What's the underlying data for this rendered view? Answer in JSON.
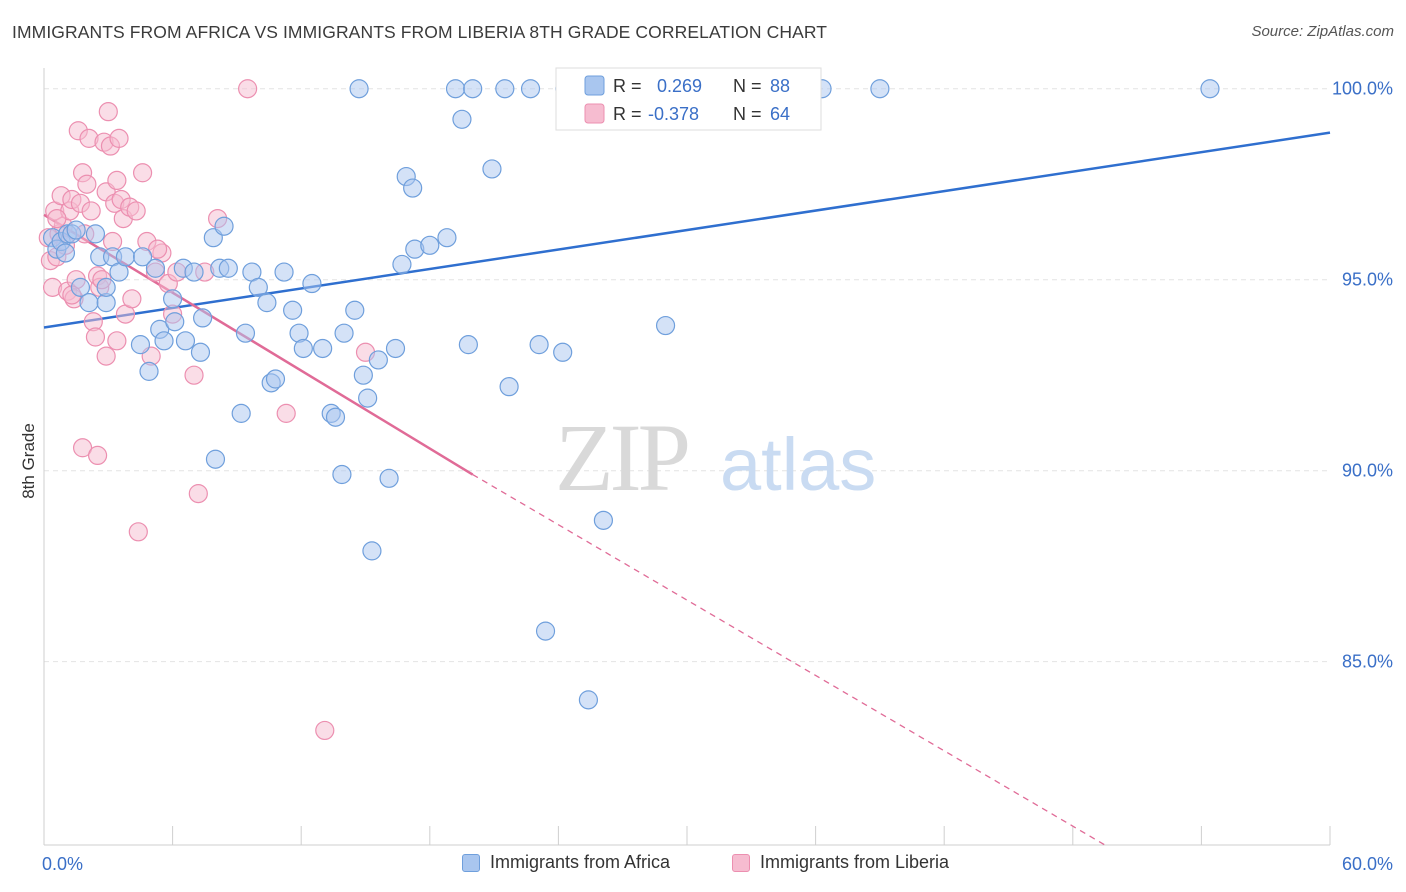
{
  "title": "IMMIGRANTS FROM AFRICA VS IMMIGRANTS FROM LIBERIA 8TH GRADE CORRELATION CHART",
  "source": "Source: ZipAtlas.com",
  "watermark": {
    "zip": "ZIP",
    "atlas": "atlas"
  },
  "colors": {
    "blue_fill": "#a9c6ef",
    "blue_stroke": "#6f9fdc",
    "blue_line": "#2f6fcf",
    "pink_fill": "#f6bcd0",
    "pink_stroke": "#ec8fb0",
    "pink_line": "#e06b97",
    "axis_label": "#3a6fc7",
    "grid": "#e4e4e4"
  },
  "legend_top": {
    "row1": {
      "r_label": "R =",
      "r_value": "0.269",
      "n_label": "N =",
      "n_value": "88"
    },
    "row2": {
      "r_label": "R =",
      "r_value": "-0.378",
      "n_label": "N =",
      "n_value": "64"
    }
  },
  "legend_bottom": {
    "series1": "Immigrants from Africa",
    "series2": "Immigrants from Liberia"
  },
  "chart_data": {
    "type": "scatter",
    "title": "IMMIGRANTS FROM AFRICA VS IMMIGRANTS FROM LIBERIA 8TH GRADE CORRELATION CHART",
    "xlabel": "",
    "ylabel": "8th Grade",
    "xlim": [
      0,
      60
    ],
    "ylim": [
      80.2,
      100.7
    ],
    "x_tick_labels": [
      "0.0%",
      "60.0%"
    ],
    "y_tick_labels": [
      "100.0%",
      "95.0%",
      "90.0%",
      "85.0%"
    ],
    "y_ticks": [
      100,
      95,
      90,
      85
    ],
    "grid": true,
    "series": [
      {
        "name": "Immigrants from Africa",
        "color": "#a9c6ef",
        "r": 0.269,
        "n": 88,
        "trend": {
          "x": [
            0,
            60
          ],
          "y": [
            93.75,
            98.85
          ]
        },
        "points": [
          [
            0.4,
            96.1
          ],
          [
            0.6,
            95.8
          ],
          [
            0.8,
            96.0
          ],
          [
            1.0,
            95.7
          ],
          [
            1.1,
            96.2
          ],
          [
            1.3,
            96.2
          ],
          [
            1.5,
            96.3
          ],
          [
            1.7,
            94.8
          ],
          [
            2.1,
            94.4
          ],
          [
            2.4,
            96.2
          ],
          [
            2.6,
            95.6
          ],
          [
            2.9,
            94.4
          ],
          [
            2.9,
            94.8
          ],
          [
            3.2,
            95.6
          ],
          [
            3.5,
            95.2
          ],
          [
            3.8,
            95.6
          ],
          [
            4.5,
            93.3
          ],
          [
            4.6,
            95.6
          ],
          [
            4.9,
            92.6
          ],
          [
            5.2,
            95.3
          ],
          [
            5.4,
            93.7
          ],
          [
            5.6,
            93.4
          ],
          [
            6.0,
            94.5
          ],
          [
            6.1,
            93.9
          ],
          [
            6.5,
            95.3
          ],
          [
            6.6,
            93.4
          ],
          [
            7.0,
            95.2
          ],
          [
            7.3,
            93.1
          ],
          [
            7.4,
            94.0
          ],
          [
            7.9,
            96.1
          ],
          [
            8.0,
            90.3
          ],
          [
            8.2,
            95.3
          ],
          [
            8.4,
            96.4
          ],
          [
            8.6,
            95.3
          ],
          [
            9.2,
            91.5
          ],
          [
            9.4,
            93.6
          ],
          [
            9.7,
            95.2
          ],
          [
            10.0,
            94.8
          ],
          [
            10.4,
            94.4
          ],
          [
            10.6,
            92.3
          ],
          [
            10.8,
            92.4
          ],
          [
            11.2,
            95.2
          ],
          [
            11.6,
            94.2
          ],
          [
            11.9,
            93.6
          ],
          [
            12.1,
            93.2
          ],
          [
            12.5,
            94.9
          ],
          [
            13.0,
            93.2
          ],
          [
            13.4,
            91.5
          ],
          [
            13.6,
            91.4
          ],
          [
            13.9,
            89.9
          ],
          [
            14.0,
            93.6
          ],
          [
            14.5,
            94.2
          ],
          [
            14.9,
            92.5
          ],
          [
            15.1,
            91.9
          ],
          [
            15.3,
            87.9
          ],
          [
            15.6,
            92.9
          ],
          [
            16.1,
            89.8
          ],
          [
            16.4,
            93.2
          ],
          [
            16.7,
            95.4
          ],
          [
            16.9,
            97.7
          ],
          [
            17.2,
            97.4
          ],
          [
            17.3,
            95.8
          ],
          [
            18.0,
            95.9
          ],
          [
            18.8,
            96.1
          ],
          [
            19.5,
            99.2
          ],
          [
            19.8,
            93.3
          ],
          [
            20.9,
            97.9
          ],
          [
            21.7,
            92.2
          ],
          [
            23.1,
            93.3
          ],
          [
            23.4,
            85.8
          ],
          [
            24.2,
            93.1
          ],
          [
            25.4,
            84.0
          ],
          [
            26.1,
            88.7
          ],
          [
            29.0,
            93.8
          ],
          [
            14.7,
            100.0
          ],
          [
            19.2,
            100.0
          ],
          [
            20.0,
            100.0
          ],
          [
            21.5,
            100.0
          ],
          [
            22.7,
            100.0
          ],
          [
            24.3,
            100.0
          ],
          [
            28.3,
            100.0
          ],
          [
            31.5,
            100.0
          ],
          [
            33.0,
            100.0
          ],
          [
            36.3,
            100.0
          ],
          [
            39.0,
            100.0
          ],
          [
            54.4,
            100.0
          ],
          [
            32.0,
            100.0
          ],
          [
            30.5,
            100.0
          ]
        ]
      },
      {
        "name": "Immigrants from Liberia",
        "color": "#f6bcd0",
        "r": -0.378,
        "n": 64,
        "trend": {
          "x": [
            0,
            20.0
          ],
          "y": [
            96.7,
            89.9
          ]
        },
        "trend_dashed": {
          "x": [
            20.0,
            49.5
          ],
          "y": [
            89.9,
            80.2
          ]
        },
        "points": [
          [
            0.2,
            96.1
          ],
          [
            0.3,
            95.5
          ],
          [
            0.4,
            94.8
          ],
          [
            0.5,
            96.8
          ],
          [
            0.6,
            95.6
          ],
          [
            0.7,
            96.2
          ],
          [
            0.8,
            97.2
          ],
          [
            0.9,
            96.4
          ],
          [
            1.0,
            95.9
          ],
          [
            1.1,
            94.7
          ],
          [
            1.2,
            96.8
          ],
          [
            1.3,
            97.1
          ],
          [
            1.4,
            94.5
          ],
          [
            1.5,
            95.0
          ],
          [
            1.6,
            98.9
          ],
          [
            1.7,
            97.0
          ],
          [
            1.8,
            97.8
          ],
          [
            1.9,
            96.2
          ],
          [
            2.0,
            97.5
          ],
          [
            2.1,
            98.7
          ],
          [
            2.2,
            96.8
          ],
          [
            2.3,
            93.9
          ],
          [
            2.4,
            93.5
          ],
          [
            2.5,
            95.1
          ],
          [
            2.6,
            94.8
          ],
          [
            2.7,
            95.0
          ],
          [
            2.8,
            98.6
          ],
          [
            2.9,
            97.3
          ],
          [
            3.0,
            99.4
          ],
          [
            3.1,
            98.5
          ],
          [
            3.2,
            96.0
          ],
          [
            3.3,
            97.0
          ],
          [
            3.4,
            97.6
          ],
          [
            3.5,
            98.7
          ],
          [
            3.6,
            97.1
          ],
          [
            3.7,
            96.6
          ],
          [
            3.8,
            94.1
          ],
          [
            4.0,
            96.9
          ],
          [
            4.3,
            96.8
          ],
          [
            4.6,
            97.8
          ],
          [
            4.8,
            96.0
          ],
          [
            5.0,
            93.0
          ],
          [
            5.2,
            95.2
          ],
          [
            5.5,
            95.7
          ],
          [
            5.8,
            94.9
          ],
          [
            6.2,
            95.2
          ],
          [
            7.0,
            92.5
          ],
          [
            7.5,
            95.2
          ],
          [
            8.1,
            96.6
          ],
          [
            9.5,
            100.0
          ],
          [
            11.3,
            91.5
          ],
          [
            13.1,
            83.2
          ],
          [
            15.0,
            93.1
          ],
          [
            1.8,
            90.6
          ],
          [
            2.5,
            90.4
          ],
          [
            4.4,
            88.4
          ],
          [
            7.2,
            89.4
          ],
          [
            1.3,
            94.6
          ],
          [
            0.6,
            96.6
          ],
          [
            3.4,
            93.4
          ],
          [
            5.3,
            95.8
          ],
          [
            4.1,
            94.5
          ],
          [
            2.9,
            93.0
          ],
          [
            6.0,
            94.1
          ]
        ]
      }
    ]
  }
}
